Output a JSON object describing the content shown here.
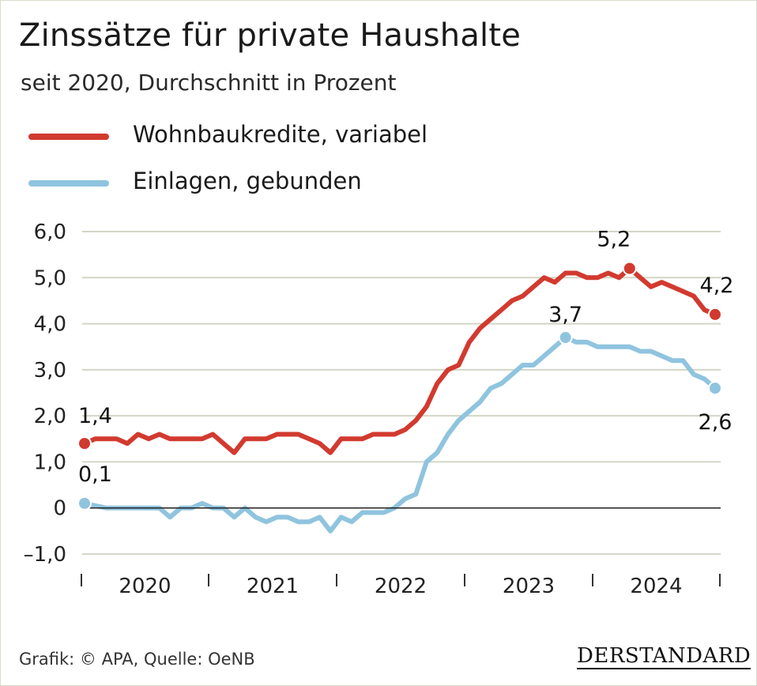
{
  "title": "Zinssätze für private Haushalte",
  "subtitle": "seit 2020, Durchschnitt in Prozent",
  "source": "Grafik: © APA, Quelle: OeNB",
  "logo": "DERSTANDARD",
  "colors": {
    "red": "#d23a2f",
    "blue": "#8fc4df",
    "grid": "#d3d6c5",
    "zero": "#222222"
  },
  "chart_data": {
    "type": "line",
    "title": "Zinssätze für private Haushalte",
    "subtitle": "seit 2020, Durchschnitt in Prozent",
    "xlabel": "",
    "ylabel": "",
    "ylim": [
      -1,
      6
    ],
    "y_ticks": [
      -1,
      0,
      1,
      2,
      3,
      4,
      5,
      6
    ],
    "y_tick_labels": [
      "–1,0",
      "0",
      "1,0",
      "2,0",
      "3,0",
      "4,0",
      "5,0",
      "6,0"
    ],
    "x_ticks": [
      "2020",
      "2021",
      "2022",
      "2023",
      "2024"
    ],
    "grid": true,
    "legend_position": "top-left",
    "months": 60,
    "series": [
      {
        "name": "Wohnbaukredite, variabel",
        "color": "#d23a2f",
        "values": [
          1.4,
          1.5,
          1.5,
          1.5,
          1.4,
          1.6,
          1.5,
          1.6,
          1.5,
          1.5,
          1.5,
          1.5,
          1.6,
          1.4,
          1.2,
          1.5,
          1.5,
          1.5,
          1.6,
          1.6,
          1.6,
          1.5,
          1.4,
          1.2,
          1.5,
          1.5,
          1.5,
          1.6,
          1.6,
          1.6,
          1.7,
          1.9,
          2.2,
          2.7,
          3.0,
          3.1,
          3.6,
          3.9,
          4.1,
          4.3,
          4.5,
          4.6,
          4.8,
          5.0,
          4.9,
          5.1,
          5.1,
          5.0,
          5.0,
          5.1,
          5.0,
          5.2,
          5.0,
          4.8,
          4.9,
          4.8,
          4.7,
          4.6,
          4.3,
          4.2
        ]
      },
      {
        "name": "Einlagen, gebunden",
        "color": "#8fc4df",
        "values": [
          0.1,
          0.05,
          -0.0,
          -0.0,
          -0.0,
          -0.0,
          -0.0,
          -0.0,
          -0.2,
          -0.0,
          -0.0,
          0.1,
          -0.0,
          -0.0,
          -0.2,
          -0.0,
          -0.2,
          -0.3,
          -0.2,
          -0.2,
          -0.3,
          -0.3,
          -0.2,
          -0.5,
          -0.2,
          -0.3,
          -0.1,
          -0.1,
          -0.1,
          0.0,
          0.2,
          0.3,
          1.0,
          1.2,
          1.6,
          1.9,
          2.1,
          2.3,
          2.6,
          2.7,
          2.9,
          3.1,
          3.1,
          3.3,
          3.5,
          3.7,
          3.6,
          3.6,
          3.5,
          3.5,
          3.5,
          3.5,
          3.4,
          3.4,
          3.3,
          3.2,
          3.2,
          2.9,
          2.8,
          2.6
        ]
      }
    ],
    "annotations": [
      {
        "series": 0,
        "index": 0,
        "label": "1,4"
      },
      {
        "series": 0,
        "index": 51,
        "label": "5,2"
      },
      {
        "series": 0,
        "index": 59,
        "label": "4,2"
      },
      {
        "series": 1,
        "index": 0,
        "label": "0,1"
      },
      {
        "series": 1,
        "index": 45,
        "label": "3,7"
      },
      {
        "series": 1,
        "index": 59,
        "label": "2,6"
      }
    ]
  }
}
